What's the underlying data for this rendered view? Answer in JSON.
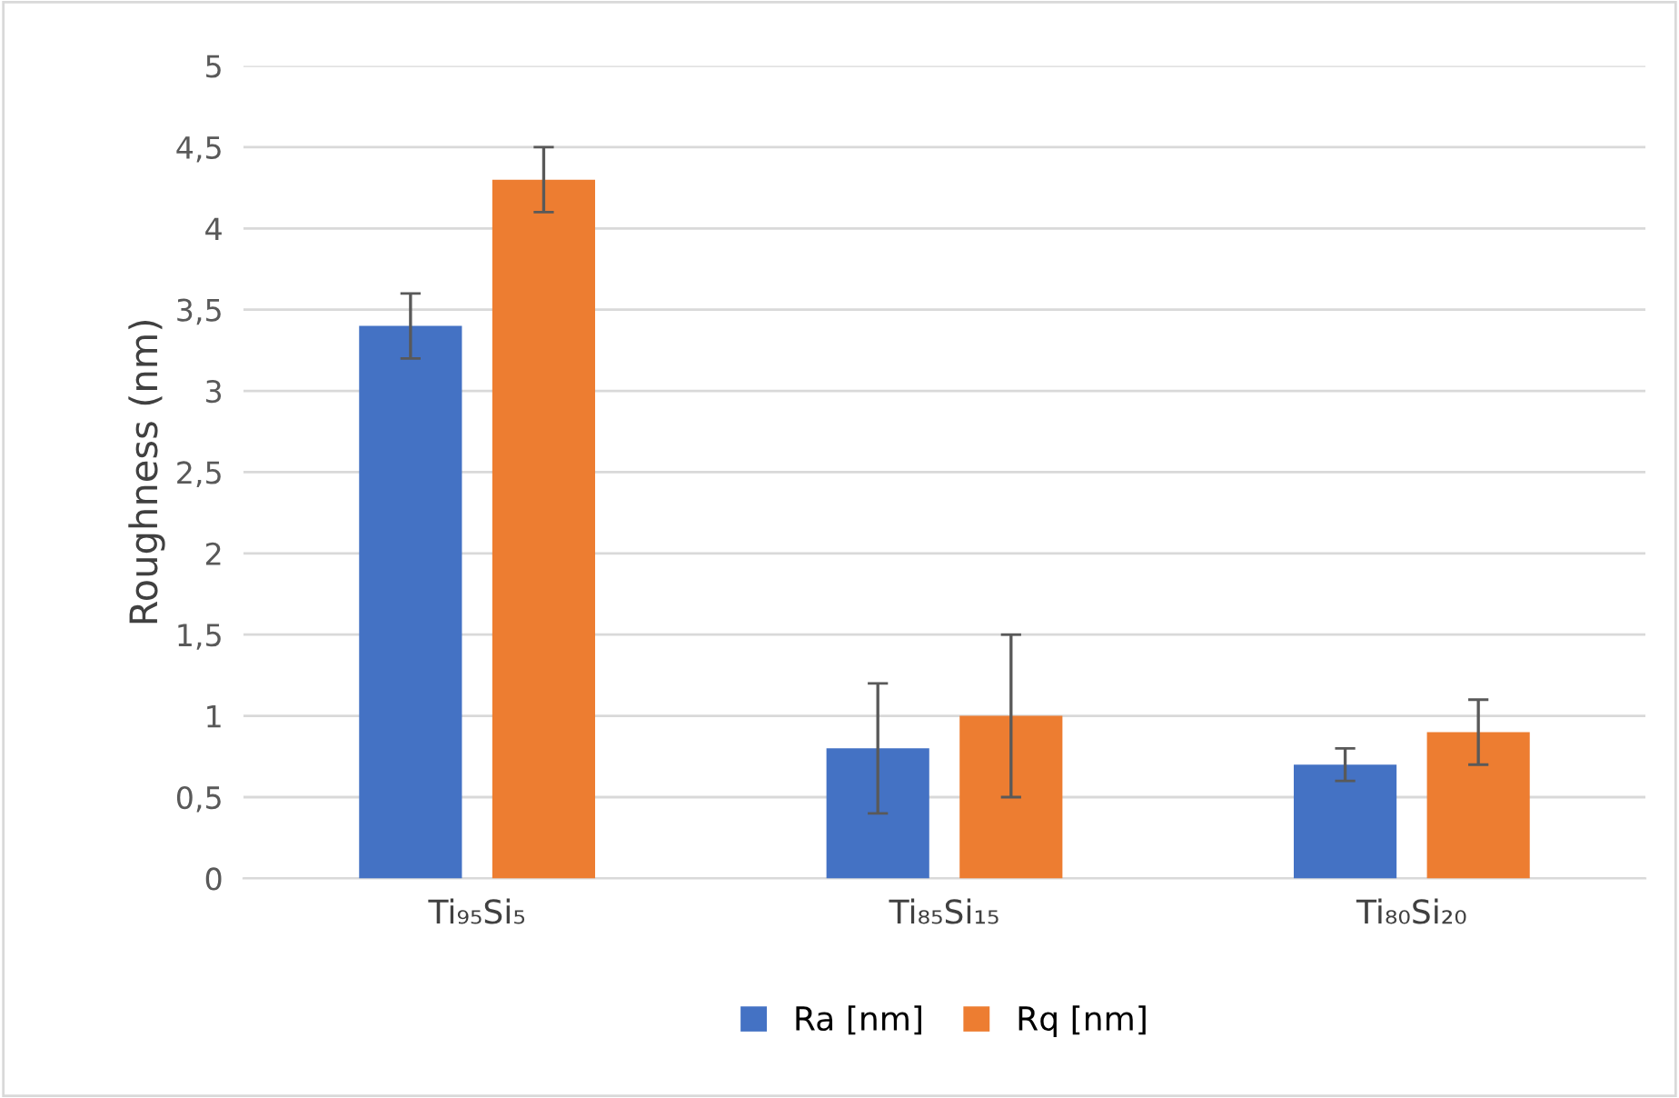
{
  "chart_data": {
    "type": "bar",
    "ylabel": "Roughness (nm)",
    "categories": [
      "Ti₉₅Si₅",
      "Ti₈₅Si₁₅",
      "Ti₈₀Si₂₀"
    ],
    "series": [
      {
        "name": "Ra [nm]",
        "color": "#4472c4",
        "values": [
          3.4,
          0.8,
          0.7
        ],
        "errors": [
          0.2,
          0.4,
          0.1
        ]
      },
      {
        "name": "Rq [nm]",
        "color": "#ed7d31",
        "values": [
          4.3,
          1.0,
          0.9
        ],
        "errors": [
          0.2,
          0.5,
          0.2
        ]
      }
    ],
    "ylim": [
      0,
      5
    ],
    "yticks": [
      0,
      {
        "value": 0.5,
        "label": "0,5"
      },
      1,
      {
        "value": 1.5,
        "label": "1,5"
      },
      2,
      {
        "value": 2.5,
        "label": "2,5"
      },
      3,
      {
        "value": 3.5,
        "label": "3,5"
      },
      4,
      {
        "value": 4.5,
        "label": "4,5"
      },
      5
    ],
    "grid": "y",
    "legend": "bottom"
  }
}
